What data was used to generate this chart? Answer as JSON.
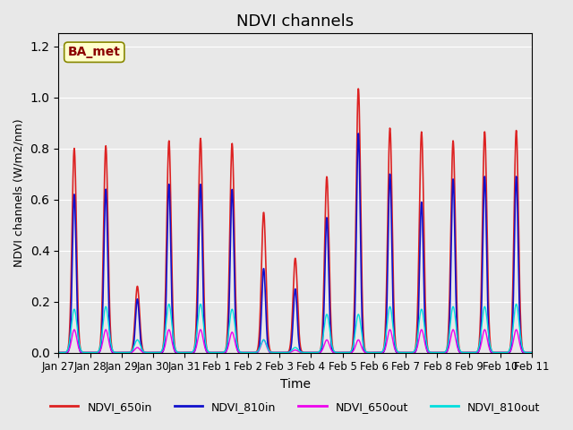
{
  "title": "NDVI channels",
  "ylabel": "NDVI channels (W/m2/nm)",
  "xlabel": "Time",
  "annotation": "BA_met",
  "ylim": [
    0.0,
    1.25
  ],
  "background_color": "#e8e8e8",
  "plot_bg_color": "#e8e8e8",
  "colors": {
    "NDVI_650in": "#dd2222",
    "NDVI_810in": "#1111cc",
    "NDVI_650out": "#ee00ee",
    "NDVI_810out": "#00dddd"
  },
  "legend_labels": [
    "NDVI_650in",
    "NDVI_810in",
    "NDVI_650out",
    "NDVI_810out"
  ],
  "xtick_labels": [
    "Jan 27",
    "Jan 28",
    "Jan 29",
    "Jan 30",
    "Jan 31",
    "Feb 1",
    "Feb 2",
    "Feb 3",
    "Feb 4",
    "Feb 5",
    "Feb 6",
    "Feb 7",
    "Feb 8",
    "Feb 9",
    "Feb 10",
    "Feb 11"
  ],
  "daily_peaks_650in": [
    0.8,
    0.81,
    0.26,
    0.83,
    0.84,
    0.82,
    0.55,
    0.37,
    0.69,
    1.035,
    0.88,
    0.865,
    0.83,
    0.865,
    0.87
  ],
  "daily_peaks_810in": [
    0.62,
    0.64,
    0.21,
    0.66,
    0.66,
    0.64,
    0.33,
    0.25,
    0.53,
    0.86,
    0.7,
    0.59,
    0.68,
    0.69,
    0.69
  ],
  "daily_peaks_650out": [
    0.09,
    0.09,
    0.02,
    0.09,
    0.09,
    0.08,
    0.05,
    0.01,
    0.05,
    0.05,
    0.09,
    0.09,
    0.09,
    0.09,
    0.09
  ],
  "daily_peaks_810out": [
    0.17,
    0.18,
    0.05,
    0.19,
    0.19,
    0.17,
    0.05,
    0.02,
    0.15,
    0.15,
    0.18,
    0.17,
    0.18,
    0.18,
    0.19
  ]
}
